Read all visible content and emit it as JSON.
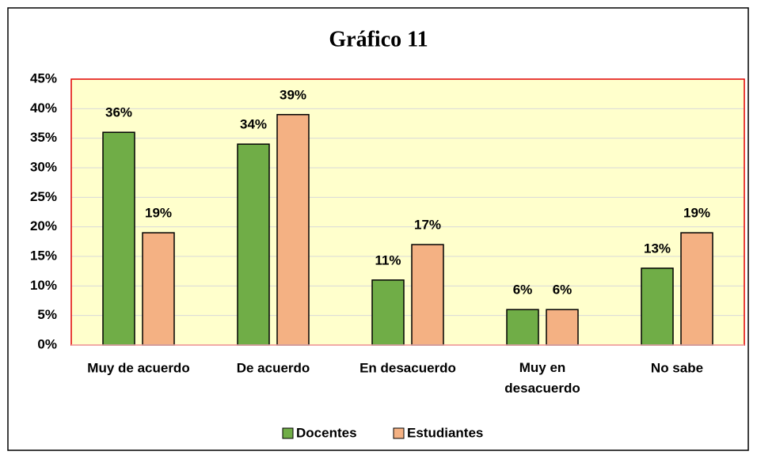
{
  "chart_data": {
    "type": "bar",
    "title": "Gráfico 11",
    "categories": [
      "Muy de acuerdo",
      "De acuerdo",
      "En desacuerdo",
      "Muy en desacuerdo",
      "No sabe"
    ],
    "series": [
      {
        "name": "Docentes",
        "color": "#70ad47",
        "values": [
          36,
          34,
          11,
          6,
          13
        ],
        "value_labels": [
          "36%",
          "34%",
          "11%",
          "6%",
          "13%"
        ]
      },
      {
        "name": "Estudiantes",
        "color": "#f4b183",
        "values": [
          19,
          39,
          17,
          6,
          19
        ],
        "value_labels": [
          "19%",
          "39%",
          "17%",
          "6%",
          "19%"
        ]
      }
    ],
    "ylim": [
      0,
      45
    ],
    "yticks": [
      {
        "value": 0,
        "label": "0%"
      },
      {
        "value": 5,
        "label": "5%"
      },
      {
        "value": 10,
        "label": "10%"
      },
      {
        "value": 15,
        "label": "15%"
      },
      {
        "value": 20,
        "label": "20%"
      },
      {
        "value": 25,
        "label": "25%"
      },
      {
        "value": 30,
        "label": "30%"
      },
      {
        "value": 35,
        "label": "35%"
      },
      {
        "value": 40,
        "label": "40%"
      },
      {
        "value": 45,
        "label": "45%"
      }
    ],
    "grid": true,
    "legend": "bottom"
  }
}
